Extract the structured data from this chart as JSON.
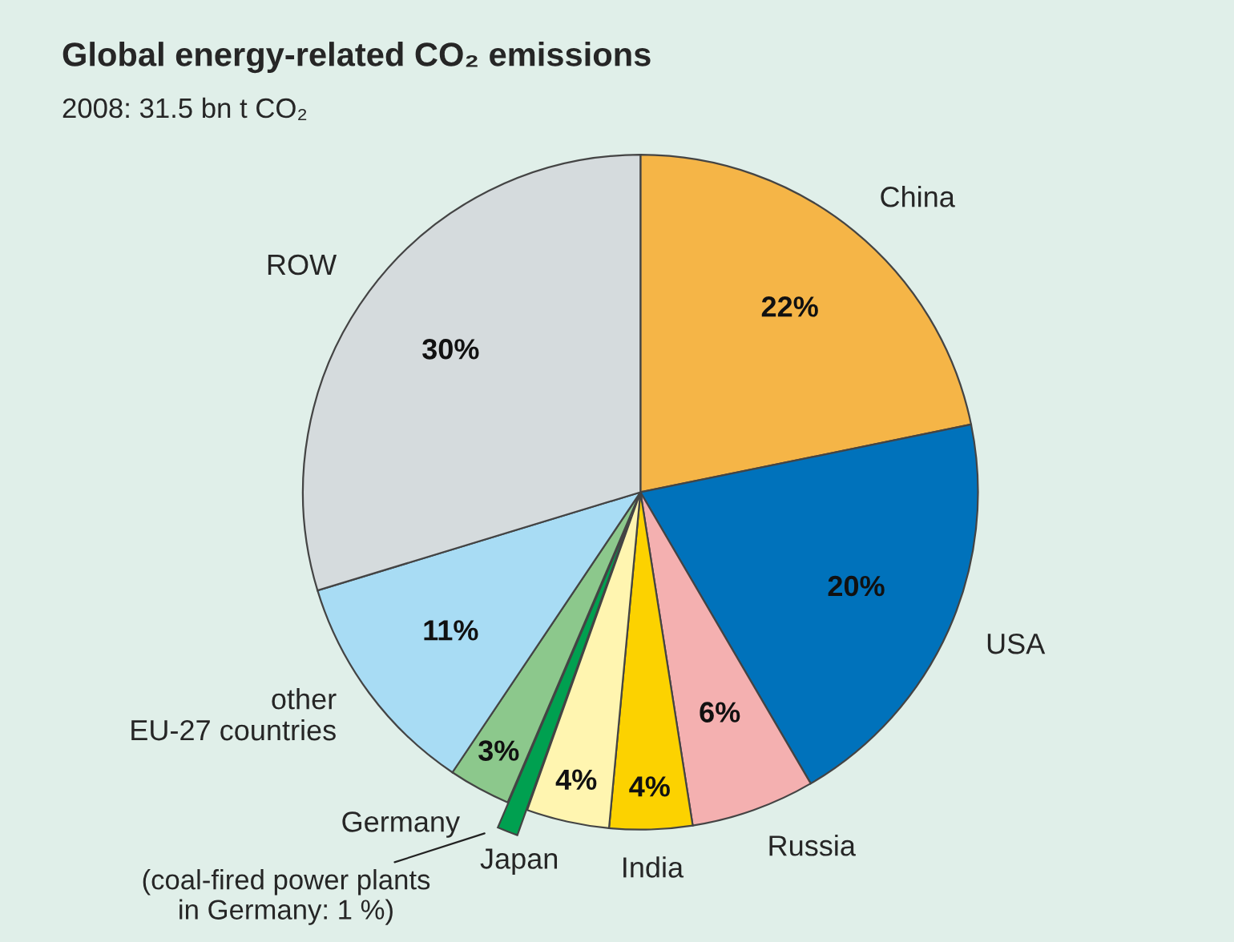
{
  "chart_data": {
    "type": "pie",
    "title": "Global energy-related CO₂ emissions",
    "subtitle": "2008: 31.5 bn t CO₂",
    "categories": [
      "China",
      "USA",
      "Russia",
      "India",
      "Japan",
      "(coal-fired power plants\nin Germany: 1 %)",
      "Germany",
      "other\nEU-27 countries",
      "ROW"
    ],
    "values": [
      22,
      20,
      6,
      4,
      4,
      1,
      3,
      11,
      30
    ],
    "value_labels": [
      "22%",
      "20%",
      "6%",
      "4%",
      "4%",
      null,
      "3%",
      "11%",
      "30%"
    ],
    "colors": [
      "#f5b547",
      "#0072bb",
      "#f4b0b0",
      "#fcd200",
      "#fff5b0",
      "#00a050",
      "#8cc88c",
      "#a8dcf4",
      "#d5dbdd"
    ],
    "legend": false
  }
}
